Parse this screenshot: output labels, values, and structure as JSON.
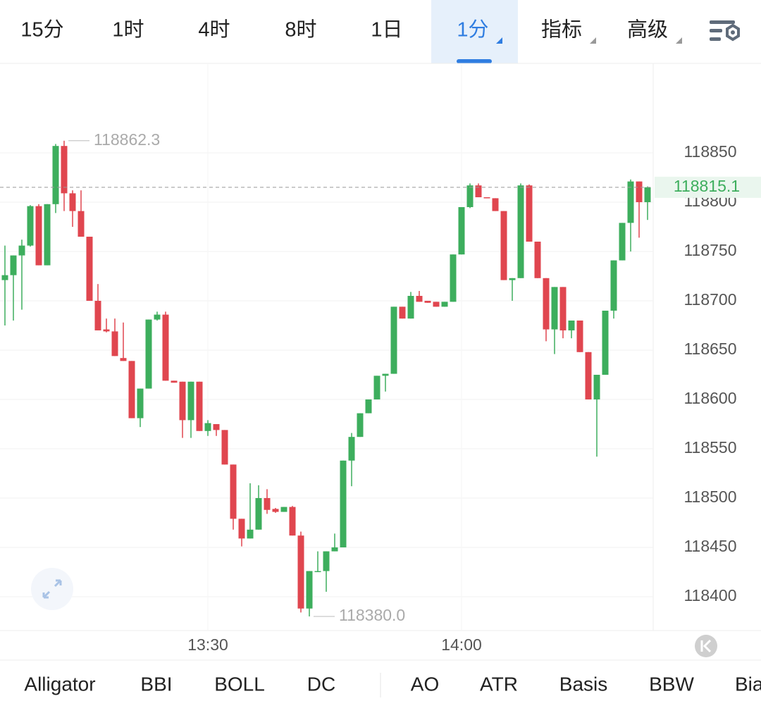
{
  "top_tabs": [
    "15分",
    "1时",
    "4时",
    "8时",
    "1日",
    "1分",
    "指标",
    "高级"
  ],
  "chart_data": {
    "type": "candlestick",
    "categories": [
      null,
      null,
      null,
      null,
      null,
      null,
      null,
      null,
      null,
      null,
      null,
      null,
      null,
      null,
      null,
      null,
      null,
      null,
      null,
      null,
      null,
      null,
      null,
      null,
      "13:30",
      null,
      null,
      null,
      null,
      null,
      null,
      null,
      null,
      null,
      null,
      null,
      null,
      null,
      null,
      null,
      null,
      null,
      null,
      null,
      null,
      null,
      null,
      null,
      null,
      null,
      null,
      null,
      null,
      null,
      "14:00",
      null,
      null,
      null,
      null,
      null,
      null,
      null,
      null,
      null,
      null,
      null,
      null,
      null,
      null,
      null,
      null,
      null,
      null,
      null,
      null,
      null,
      null
    ],
    "open": [
      118721,
      118726,
      118746,
      118756,
      118796,
      118736,
      118798,
      118857,
      118809,
      118791,
      118765,
      118700,
      118671,
      118669,
      118642,
      118639,
      118581,
      118611,
      118681,
      118686,
      118619,
      118618,
      118579,
      118618,
      118568,
      118575,
      118569,
      118534,
      118479,
      118459,
      118468,
      118500,
      118489,
      118486,
      118491,
      118462,
      118388,
      118425,
      118426,
      118446,
      118450,
      118538,
      118562,
      118586,
      118600,
      118624,
      118626,
      118694,
      118682,
      118705,
      118700,
      118699,
      118694,
      118699,
      118747,
      118795,
      118817,
      118805,
      118804,
      118791,
      118721,
      118723,
      118817,
      118760,
      118723,
      118671,
      118714,
      118670,
      118680,
      118648,
      118600,
      118625,
      118690,
      118741,
      118779,
      118821,
      118800
    ],
    "high": [
      118756,
      118746,
      118762,
      118797,
      118798,
      118798,
      118859,
      118862.3,
      118812,
      118812,
      118765,
      118717,
      118682,
      118682,
      118678,
      118639,
      118611,
      118681,
      118689,
      118689,
      118619,
      118618,
      118618,
      118618,
      118579,
      118575,
      118569,
      118534,
      118479,
      118515,
      118513,
      118509,
      118490,
      118491,
      118492,
      118466,
      118426,
      118446,
      118446,
      118464,
      118538,
      118566,
      118586,
      118600,
      118624,
      118626,
      118694,
      118694,
      118709,
      118710,
      118700,
      118699,
      118699,
      118747,
      118795,
      118819,
      118819,
      118805,
      118804,
      118791,
      118723,
      118819,
      118818,
      118760,
      118723,
      118714,
      118714,
      118680,
      118680,
      118648,
      118625,
      118690,
      118741,
      118779,
      118823,
      118821,
      118816
    ],
    "low": [
      118675,
      118680,
      118691,
      118755,
      118736,
      118736,
      118789,
      118791,
      118775,
      118765,
      118700,
      118670,
      118668,
      118644,
      118639,
      118581,
      118572,
      118611,
      118680,
      118619,
      118617,
      118561,
      118561,
      118568,
      118563,
      118563,
      118534,
      118468,
      118451,
      118459,
      118468,
      118484,
      118485,
      118486,
      118462,
      118384,
      118380,
      118425,
      118405,
      118446,
      118450,
      118512,
      118562,
      118586,
      118600,
      118608,
      118626,
      118682,
      118682,
      118699,
      118698,
      118694,
      118694,
      118699,
      118747,
      118794,
      118805,
      118804,
      118791,
      118721,
      118700,
      118723,
      118760,
      118723,
      118659,
      118646,
      118662,
      118662,
      118648,
      118600,
      118542,
      118625,
      118682,
      118741,
      118750,
      118764,
      118782
    ],
    "close": [
      118726,
      118746,
      118756,
      118796,
      118736,
      118798,
      118857,
      118809,
      118791,
      118765,
      118700,
      118670,
      118669,
      118644,
      118639,
      118581,
      118611,
      118681,
      118686,
      118619,
      118617,
      118579,
      118618,
      118568,
      118576,
      118569,
      118534,
      118479,
      118459,
      118468,
      118500,
      118488,
      118486,
      118491,
      118462,
      118388,
      118426,
      118426,
      118446,
      118450,
      118538,
      118562,
      118586,
      118600,
      118624,
      118626,
      118694,
      118682,
      118705,
      118699,
      118698,
      118694,
      118699,
      118747,
      118795,
      118817,
      118805,
      118804,
      118791,
      118721,
      118723,
      118817,
      118760,
      118723,
      118671,
      118714,
      118670,
      118680,
      118648,
      118600,
      118625,
      118690,
      118741,
      118779,
      118821,
      118800,
      118815.1
    ],
    "ylim": [
      118365.7,
      118940.7
    ],
    "yticks": [
      118400,
      118450,
      118500,
      118550,
      118600,
      118650,
      118700,
      118750,
      118800,
      118850
    ],
    "grid": true,
    "up_color": "#3dae5d",
    "down_color": "#e0464f",
    "high_label": 118862.3,
    "low_label": {
      "value": 118380,
      "label": "118380.0"
    },
    "last_price": 118815.1
  },
  "indicator_tabs": [
    "Alligator",
    "BBI",
    "BOLL",
    "DC",
    "AO",
    "ATR",
    "Basis",
    "BBW",
    "Bias"
  ]
}
